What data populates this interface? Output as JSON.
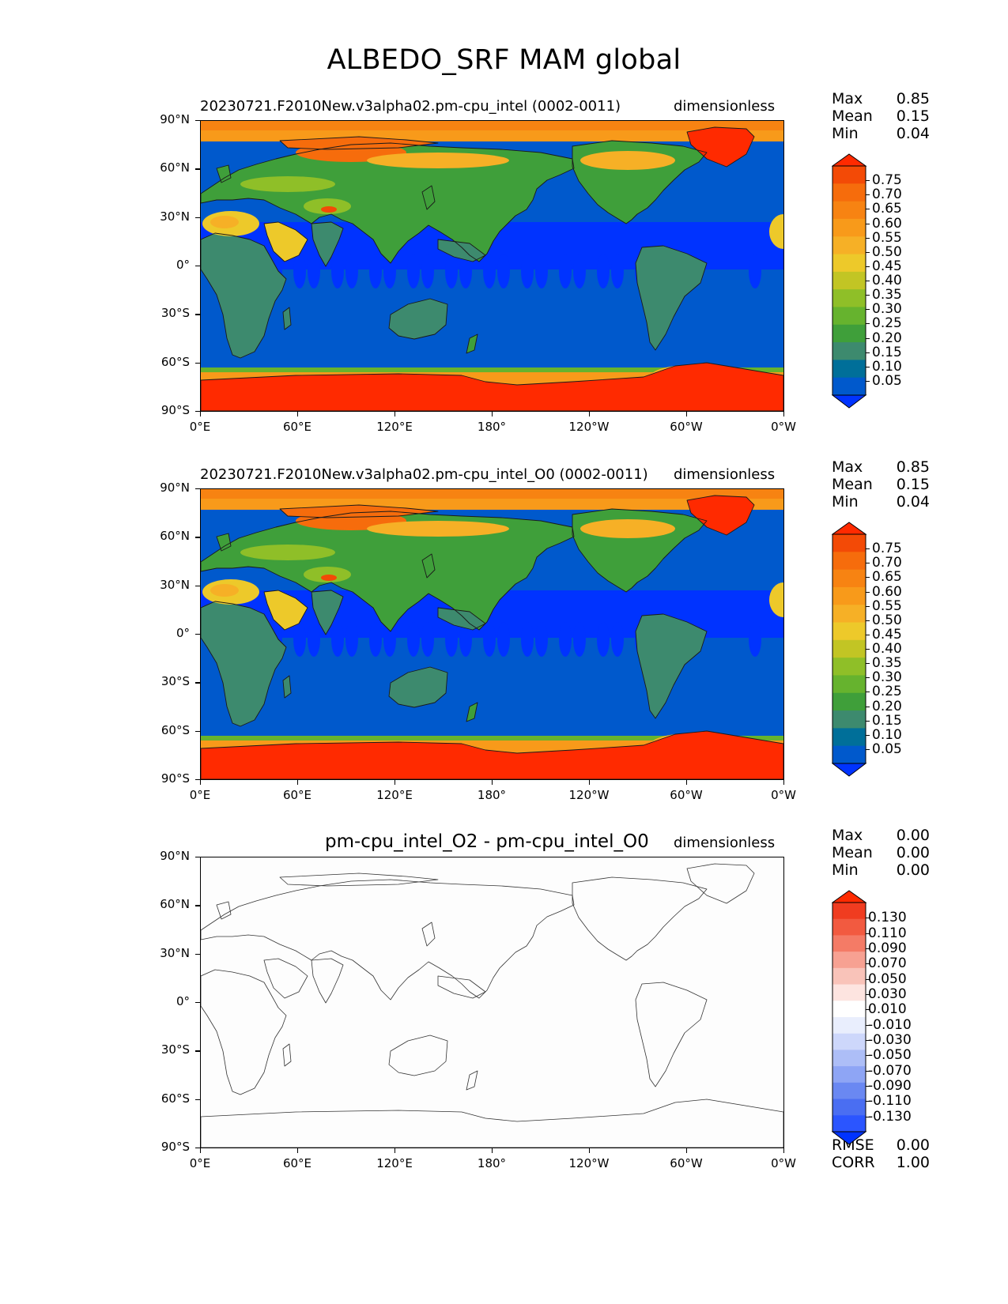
{
  "figure": {
    "title": "ALBEDO_SRF MAM global"
  },
  "colors": {
    "albedo": [
      "#0033ff",
      "#0059cc",
      "#006f99",
      "#3d8a6e",
      "#3f9f3a",
      "#66b32e",
      "#8fbf28",
      "#c2c524",
      "#edc92a",
      "#f6b026",
      "#f89a1a",
      "#f78312",
      "#f66c0c",
      "#f34a06",
      "#ff2a00"
    ],
    "diff": [
      "#0033ff",
      "#2b55ff",
      "#4a6ef2",
      "#6a88f2",
      "#8ea5f5",
      "#adbef7",
      "#cdd7fb",
      "#e9eefd",
      "#ffffff",
      "#fde4e0",
      "#f9c3b9",
      "#f7a192",
      "#f47b66",
      "#f25a40",
      "#f03c20",
      "#ff2a00"
    ],
    "ocean_low": "#0033ff",
    "ocean": "#0059cc",
    "ice": "#ff2a00",
    "coast": "#1a1a1a",
    "blank_map": "#fdfdfd"
  },
  "panels": [
    {
      "title": "20230721.F2010New.v3alpha02.pm-cpu_intel (0002-0011)",
      "units": "dimensionless",
      "stats": {
        "max_label": "Max",
        "max": "0.85",
        "mean_label": "Mean",
        "mean": "0.15",
        "min_label": "Min",
        "min": "0.04"
      },
      "lat_ticks": [
        "90°N",
        "60°N",
        "30°N",
        "0°",
        "30°S",
        "60°S",
        "90°S"
      ],
      "lon_ticks": [
        "0°E",
        "60°E",
        "120°E",
        "180°",
        "120°W",
        "60°W",
        "0°W"
      ],
      "colorbar": {
        "labels": [
          "0.75",
          "0.70",
          "0.65",
          "0.60",
          "0.55",
          "0.50",
          "0.45",
          "0.40",
          "0.35",
          "0.30",
          "0.25",
          "0.20",
          "0.15",
          "0.10",
          "0.05"
        ],
        "values": [
          0.75,
          0.7,
          0.65,
          0.6,
          0.55,
          0.5,
          0.45,
          0.4,
          0.35,
          0.3,
          0.25,
          0.2,
          0.15,
          0.1,
          0.05
        ]
      }
    },
    {
      "title": "20230721.F2010New.v3alpha02.pm-cpu_intel_O0 (0002-0011)",
      "units": "dimensionless",
      "stats": {
        "max_label": "Max",
        "max": "0.85",
        "mean_label": "Mean",
        "mean": "0.15",
        "min_label": "Min",
        "min": "0.04"
      },
      "lat_ticks": [
        "90°N",
        "60°N",
        "30°N",
        "0°",
        "30°S",
        "60°S",
        "90°S"
      ],
      "lon_ticks": [
        "0°E",
        "60°E",
        "120°E",
        "180°",
        "120°W",
        "60°W",
        "0°W"
      ],
      "colorbar": {
        "labels": [
          "0.75",
          "0.70",
          "0.65",
          "0.60",
          "0.55",
          "0.50",
          "0.45",
          "0.40",
          "0.35",
          "0.30",
          "0.25",
          "0.20",
          "0.15",
          "0.10",
          "0.05"
        ],
        "values": [
          0.75,
          0.7,
          0.65,
          0.6,
          0.55,
          0.5,
          0.45,
          0.4,
          0.35,
          0.3,
          0.25,
          0.2,
          0.15,
          0.1,
          0.05
        ]
      }
    },
    {
      "title": "pm-cpu_intel_O2 - pm-cpu_intel_O0",
      "units": "dimensionless",
      "stats": {
        "max_label": "Max",
        "max": "0.00",
        "mean_label": "Mean",
        "mean": "0.00",
        "min_label": "Min",
        "min": "0.00",
        "rmse_label": "RMSE",
        "rmse": "0.00",
        "corr_label": "CORR",
        "corr": "1.00"
      },
      "lat_ticks": [
        "90°N",
        "60°N",
        "30°N",
        "0°",
        "30°S",
        "60°S",
        "90°S"
      ],
      "lon_ticks": [
        "0°E",
        "60°E",
        "120°E",
        "180°",
        "120°W",
        "60°W",
        "0°W"
      ],
      "colorbar": {
        "labels": [
          "0.130",
          "0.110",
          "0.090",
          "0.070",
          "0.050",
          "0.030",
          "0.010",
          "-0.010",
          "-0.030",
          "-0.050",
          "-0.070",
          "-0.090",
          "-0.110",
          "-0.130"
        ],
        "values": [
          0.13,
          0.11,
          0.09,
          0.07,
          0.05,
          0.03,
          0.01,
          -0.01,
          -0.03,
          -0.05,
          -0.07,
          -0.09,
          -0.11,
          -0.13
        ]
      }
    }
  ]
}
